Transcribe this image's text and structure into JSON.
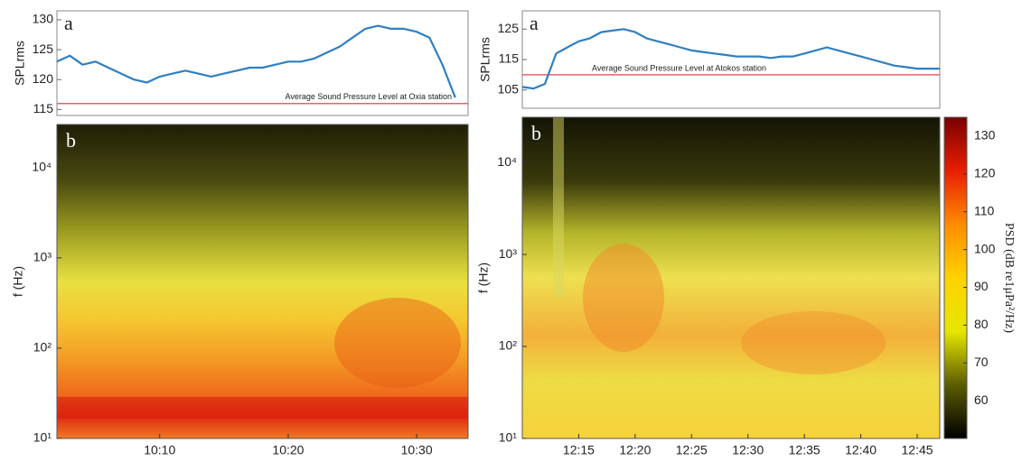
{
  "chart_data": [
    {
      "type": "line",
      "annotation": "a",
      "ylabel": "SPLrms",
      "x": [
        "10:02",
        "10:03",
        "10:04",
        "10:05",
        "10:06",
        "10:07",
        "10:08",
        "10:09",
        "10:10",
        "10:11",
        "10:12",
        "10:13",
        "10:14",
        "10:15",
        "10:16",
        "10:17",
        "10:18",
        "10:19",
        "10:20",
        "10:21",
        "10:22",
        "10:23",
        "10:24",
        "10:25",
        "10:26",
        "10:27",
        "10:28",
        "10:29",
        "10:30",
        "10:31",
        "10:32",
        "10:33"
      ],
      "series": [
        {
          "color": "#2f7fc1",
          "values": [
            123,
            124,
            122.5,
            123,
            122,
            121,
            120,
            119.5,
            120.5,
            121,
            121.5,
            121,
            120.5,
            121,
            121.5,
            122,
            122,
            122.5,
            123,
            123,
            123.5,
            124.5,
            125.5,
            127,
            128.5,
            129,
            128.5,
            128.5,
            128,
            127,
            122.5,
            117
          ]
        }
      ],
      "xlim": [
        "10:02",
        "10:34"
      ],
      "ylim": [
        114,
        131.5
      ],
      "yticks": [
        115,
        120,
        125,
        130
      ],
      "hline": {
        "value": 116,
        "label": "Average Sound Pressure Level at Oxia station",
        "color": "#e8606a"
      }
    },
    {
      "type": "line",
      "annotation": "a",
      "ylabel": "SPLrms",
      "x": [
        "12:10",
        "12:11",
        "12:12",
        "12:13",
        "12:14",
        "12:15",
        "12:16",
        "12:17",
        "12:18",
        "12:19",
        "12:20",
        "12:21",
        "12:22",
        "12:23",
        "12:24",
        "12:25",
        "12:26",
        "12:27",
        "12:28",
        "12:29",
        "12:30",
        "12:31",
        "12:32",
        "12:33",
        "12:34",
        "12:35",
        "12:36",
        "12:37",
        "12:38",
        "12:39",
        "12:40",
        "12:41",
        "12:42",
        "12:43",
        "12:44",
        "12:45",
        "12:46",
        "12:47"
      ],
      "series": [
        {
          "color": "#2f7fc1",
          "values": [
            106,
            105.5,
            107,
            117,
            119,
            121,
            122,
            124,
            124.5,
            125,
            124,
            122,
            121,
            120,
            119,
            118,
            117.5,
            117,
            116.5,
            116,
            116,
            116,
            115.5,
            116,
            116,
            117,
            118,
            119,
            118,
            117,
            116,
            115,
            114,
            113,
            112.5,
            112,
            112,
            112
          ]
        }
      ],
      "xlim": [
        "12:10",
        "12:47"
      ],
      "ylim": [
        99,
        131
      ],
      "yticks": [
        105,
        115,
        125
      ],
      "hline": {
        "value": 110,
        "label": "Average Sound Pressure Level at Atokos station",
        "color": "#e8606a"
      }
    },
    {
      "type": "spectrogram",
      "annotation": "b",
      "ylabel": "f (Hz)",
      "yscale": "log",
      "xlim": [
        "10:02",
        "10:34"
      ],
      "xticks": [
        "10:10",
        "10:20",
        "10:30"
      ],
      "ylim": [
        10,
        30000
      ],
      "yticks": [
        {
          "value": 10,
          "label": "10¹"
        },
        {
          "value": 100,
          "label": "10²"
        },
        {
          "value": 1000,
          "label": "10³"
        },
        {
          "value": 10000,
          "label": "10⁴"
        }
      ]
    },
    {
      "type": "spectrogram",
      "annotation": "b",
      "ylabel": "f (Hz)",
      "yscale": "log",
      "xlim": [
        "12:10",
        "12:47"
      ],
      "xticks": [
        "12:15",
        "12:20",
        "12:25",
        "12:30",
        "12:35",
        "12:40",
        "12:45"
      ],
      "ylim": [
        10,
        31000
      ],
      "yticks": [
        {
          "value": 10,
          "label": "10¹"
        },
        {
          "value": 100,
          "label": "10²"
        },
        {
          "value": 1000,
          "label": "10³"
        },
        {
          "value": 10000,
          "label": "10⁴"
        }
      ]
    },
    {
      "type": "colorbar",
      "label": "PSD (dB re1μPa²/Hz)",
      "ylim": [
        50,
        135
      ],
      "yticks": [
        60,
        70,
        80,
        90,
        100,
        110,
        120,
        130
      ],
      "colors": [
        "#000000",
        "#5c5c00",
        "#e6e600",
        "#ffd200",
        "#ff8c00",
        "#e81e00",
        "#7a0000"
      ]
    }
  ]
}
